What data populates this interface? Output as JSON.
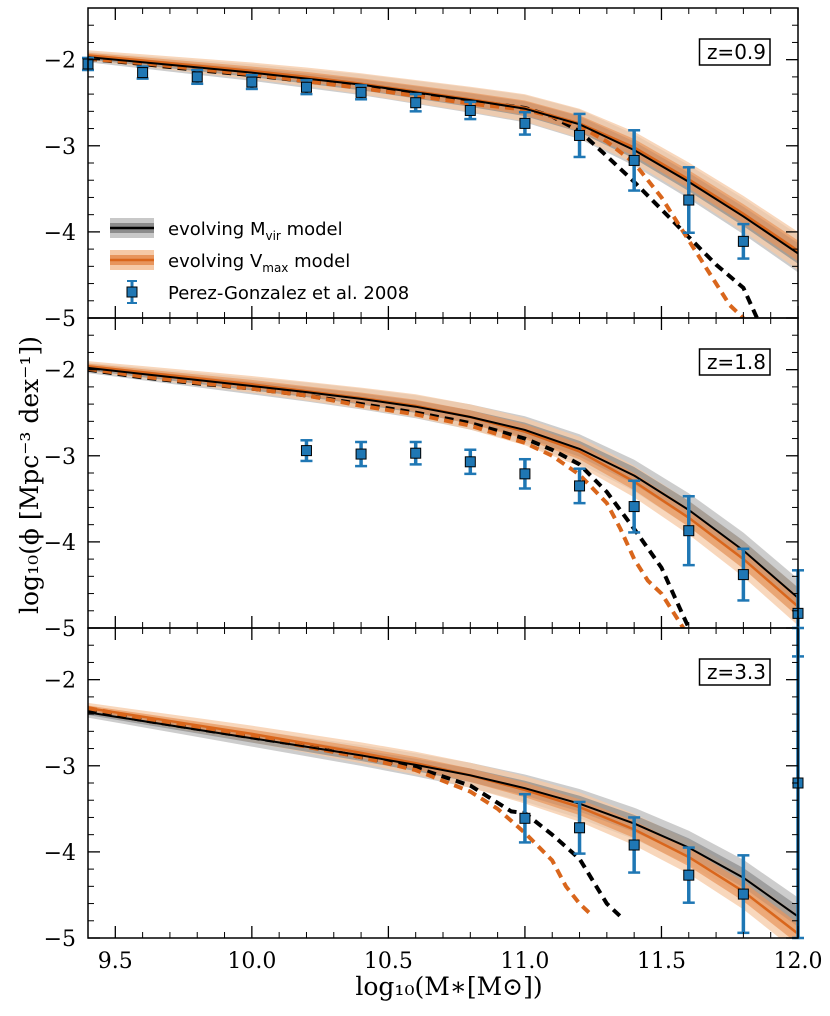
{
  "colors": {
    "mvir": "#000000",
    "mvir_band_dark": "#8c8c8c",
    "mvir_band_light": "#c8c8c8",
    "vmax": "#d9661c",
    "vmax_band_dark": "#e8955c",
    "vmax_band_light": "#f6c9a6",
    "data": "#1f77b4"
  },
  "chart_data": {
    "type": "line",
    "xlabel": "log₁₀(M∗[M⊙])",
    "ylabel": "log₁₀(ϕ [Mpc⁻³ dex⁻¹])",
    "xlim": [
      9.4,
      12.0
    ],
    "ylim": [
      -5.0,
      -1.4
    ],
    "x_ticks": [
      9.5,
      10.0,
      10.5,
      11.0,
      11.5,
      12.0
    ],
    "x_tick_labels": [
      "9.5",
      "10.0",
      "10.5",
      "11.0",
      "11.5",
      "12.0"
    ],
    "y_ticks": [
      -2,
      -3,
      -4,
      -5
    ],
    "y_tick_labels": [
      "−2",
      "−3",
      "−4",
      "−5"
    ],
    "grid": false,
    "legend": {
      "location": "left, first panel",
      "entries": [
        {
          "label": "evolving M",
          "sub": "vir",
          "suffix": " model",
          "style": "band",
          "series": "mvir"
        },
        {
          "label": "evolving V",
          "sub": "max",
          "suffix": " model",
          "style": "band",
          "series": "vmax"
        },
        {
          "label": "Perez-Gonzalez et al. 2008",
          "sub": "",
          "suffix": "",
          "style": "errorbar",
          "series": "data"
        }
      ]
    },
    "panels": [
      {
        "label": "z=0.9",
        "mvir_model": {
          "x": [
            9.4,
            9.6,
            9.8,
            10.0,
            10.2,
            10.4,
            10.6,
            10.8,
            11.0,
            11.2,
            11.4,
            11.6,
            11.8,
            12.0
          ],
          "y": [
            -1.97,
            -2.03,
            -2.09,
            -2.15,
            -2.22,
            -2.29,
            -2.38,
            -2.47,
            -2.57,
            -2.75,
            -3.05,
            -3.42,
            -3.82,
            -4.25
          ]
        },
        "vmax_model": {
          "x": [
            9.4,
            9.6,
            9.8,
            10.0,
            10.2,
            10.4,
            10.6,
            10.8,
            11.0,
            11.2,
            11.4,
            11.6,
            11.8,
            12.0
          ],
          "y": [
            -1.95,
            -2.01,
            -2.07,
            -2.13,
            -2.2,
            -2.28,
            -2.37,
            -2.46,
            -2.56,
            -2.74,
            -3.02,
            -3.39,
            -3.79,
            -4.22
          ]
        },
        "mvir_dashed": {
          "x": [
            9.4,
            9.6,
            9.8,
            10.0,
            10.2,
            10.4,
            10.6,
            10.8,
            11.0,
            11.1,
            11.2,
            11.3,
            11.4,
            11.5,
            11.6,
            11.7,
            11.8,
            11.85
          ],
          "y": [
            -1.99,
            -2.05,
            -2.12,
            -2.18,
            -2.25,
            -2.32,
            -2.4,
            -2.48,
            -2.56,
            -2.66,
            -2.83,
            -3.12,
            -3.42,
            -3.74,
            -4.06,
            -4.38,
            -4.65,
            -5.0
          ]
        },
        "vmax_dashed": {
          "x": [
            9.4,
            9.6,
            9.8,
            10.0,
            10.2,
            10.4,
            10.6,
            10.8,
            11.0,
            11.1,
            11.2,
            11.3,
            11.4,
            11.5,
            11.6,
            11.7,
            11.75,
            11.8
          ],
          "y": [
            -1.99,
            -2.04,
            -2.11,
            -2.17,
            -2.25,
            -2.33,
            -2.42,
            -2.51,
            -2.58,
            -2.66,
            -2.77,
            -2.95,
            -3.2,
            -3.6,
            -4.1,
            -4.6,
            -4.85,
            -5.0
          ]
        },
        "data": {
          "x": [
            9.4,
            9.6,
            9.8,
            10.0,
            10.2,
            10.4,
            10.6,
            10.8,
            11.0,
            11.2,
            11.4,
            11.6,
            11.8
          ],
          "y": [
            -2.05,
            -2.15,
            -2.2,
            -2.26,
            -2.32,
            -2.38,
            -2.5,
            -2.59,
            -2.74,
            -2.88,
            -3.17,
            -3.63,
            -4.11
          ],
          "err": [
            0.07,
            0.07,
            0.08,
            0.08,
            0.08,
            0.08,
            0.1,
            0.1,
            0.13,
            0.25,
            0.35,
            0.38,
            0.2
          ]
        }
      },
      {
        "label": "z=1.8",
        "mvir_model": {
          "x": [
            9.4,
            9.6,
            9.8,
            10.0,
            10.2,
            10.4,
            10.6,
            10.8,
            11.0,
            11.2,
            11.4,
            11.6,
            11.8,
            12.0
          ],
          "y": [
            -1.98,
            -2.05,
            -2.12,
            -2.19,
            -2.26,
            -2.34,
            -2.43,
            -2.55,
            -2.7,
            -2.92,
            -3.23,
            -3.63,
            -4.1,
            -4.65
          ]
        },
        "vmax_model": {
          "x": [
            9.4,
            9.6,
            9.8,
            10.0,
            10.2,
            10.4,
            10.6,
            10.8,
            11.0,
            11.2,
            11.4,
            11.6,
            11.8,
            12.0
          ],
          "y": [
            -1.96,
            -2.03,
            -2.1,
            -2.17,
            -2.25,
            -2.33,
            -2.42,
            -2.55,
            -2.72,
            -2.95,
            -3.3,
            -3.72,
            -4.2,
            -4.75
          ]
        },
        "mvir_dashed": {
          "x": [
            9.4,
            9.6,
            9.8,
            10.0,
            10.2,
            10.4,
            10.6,
            10.8,
            11.0,
            11.1,
            11.2,
            11.3,
            11.4,
            11.5,
            11.55,
            11.6
          ],
          "y": [
            -2.0,
            -2.09,
            -2.16,
            -2.22,
            -2.3,
            -2.4,
            -2.5,
            -2.62,
            -2.8,
            -2.93,
            -3.1,
            -3.42,
            -3.85,
            -4.3,
            -4.65,
            -5.0
          ]
        },
        "vmax_dashed": {
          "x": [
            9.4,
            9.6,
            9.8,
            10.0,
            10.2,
            10.4,
            10.6,
            10.8,
            11.0,
            11.1,
            11.2,
            11.3,
            11.35,
            11.4,
            11.45,
            11.5,
            11.55,
            11.58
          ],
          "y": [
            -1.99,
            -2.08,
            -2.15,
            -2.22,
            -2.3,
            -2.42,
            -2.52,
            -2.65,
            -2.85,
            -3.0,
            -3.22,
            -3.55,
            -3.85,
            -4.2,
            -4.45,
            -4.6,
            -4.85,
            -5.0
          ]
        },
        "data": {
          "x": [
            10.2,
            10.4,
            10.6,
            10.8,
            11.0,
            11.2,
            11.4,
            11.6,
            11.8,
            12.0
          ],
          "y": [
            -2.94,
            -2.98,
            -2.97,
            -3.07,
            -3.21,
            -3.35,
            -3.59,
            -3.87,
            -4.38,
            -4.83
          ],
          "err": [
            0.12,
            0.14,
            0.13,
            0.14,
            0.17,
            0.2,
            0.3,
            0.4,
            0.3,
            0.5
          ]
        }
      },
      {
        "label": "z=3.3",
        "mvir_model": {
          "x": [
            9.4,
            9.6,
            9.8,
            10.0,
            10.2,
            10.4,
            10.6,
            10.8,
            11.0,
            11.2,
            11.4,
            11.6,
            11.8,
            12.0
          ],
          "y": [
            -2.38,
            -2.48,
            -2.58,
            -2.68,
            -2.78,
            -2.88,
            -2.99,
            -3.11,
            -3.26,
            -3.44,
            -3.67,
            -3.95,
            -4.3,
            -4.75
          ]
        },
        "vmax_model": {
          "x": [
            9.4,
            9.6,
            9.8,
            10.0,
            10.2,
            10.4,
            10.6,
            10.8,
            11.0,
            11.2,
            11.4,
            11.6,
            11.8,
            12.0
          ],
          "y": [
            -2.33,
            -2.43,
            -2.53,
            -2.63,
            -2.74,
            -2.85,
            -2.97,
            -3.11,
            -3.28,
            -3.48,
            -3.74,
            -4.06,
            -4.46,
            -4.95
          ]
        },
        "mvir_dashed": {
          "x": [
            9.4,
            9.6,
            9.8,
            10.0,
            10.2,
            10.4,
            10.6,
            10.8,
            10.95,
            11.0,
            11.1,
            11.2,
            11.3,
            11.35
          ],
          "y": [
            -2.35,
            -2.47,
            -2.57,
            -2.67,
            -2.77,
            -2.9,
            -3.02,
            -3.23,
            -3.53,
            -3.55,
            -3.8,
            -4.08,
            -4.6,
            -4.75
          ]
        },
        "vmax_dashed": {
          "x": [
            9.4,
            9.6,
            9.8,
            10.0,
            10.2,
            10.4,
            10.6,
            10.8,
            10.9,
            11.0,
            11.1,
            11.15,
            11.2,
            11.25
          ],
          "y": [
            -2.33,
            -2.45,
            -2.55,
            -2.65,
            -2.78,
            -2.9,
            -3.05,
            -3.3,
            -3.5,
            -3.78,
            -4.1,
            -4.4,
            -4.6,
            -4.75
          ]
        },
        "data": {
          "x": [
            11.0,
            11.2,
            11.4,
            11.6,
            11.8,
            12.0
          ],
          "y": [
            -3.61,
            -3.72,
            -3.92,
            -4.27,
            -4.49,
            -3.2
          ],
          "err": [
            0.28,
            0.3,
            0.32,
            0.32,
            0.45,
            1.8
          ]
        }
      }
    ]
  }
}
